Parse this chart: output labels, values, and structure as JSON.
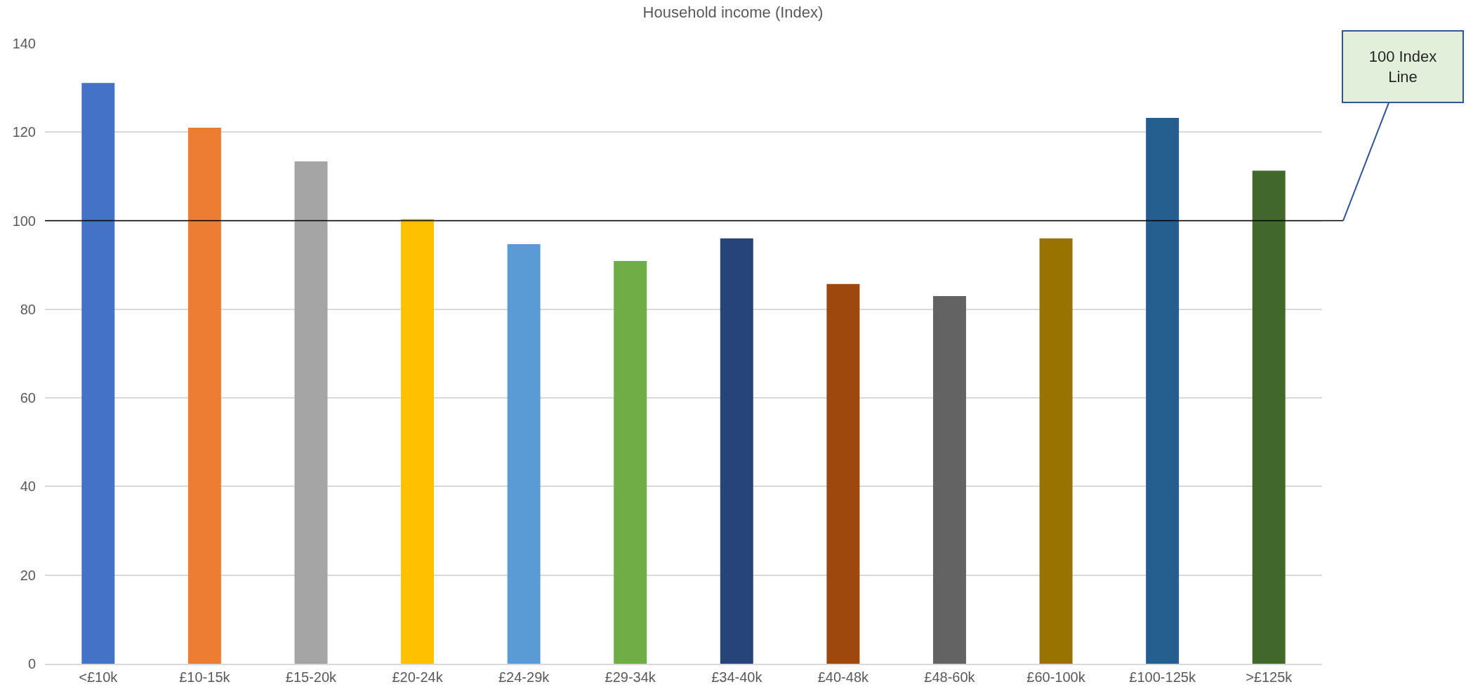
{
  "chart_data": {
    "type": "bar",
    "title": "Household income (Index)",
    "categories": [
      "<£10k",
      "£10-15k",
      "£15-20k",
      "£20-24k",
      "£24-29k",
      "£29-34k",
      "£34-40k",
      "£40-48k",
      "£48-60k",
      "£60-100k",
      "£100-125k",
      ">£125k"
    ],
    "values": [
      131.1,
      121.0,
      113.4,
      100.4,
      94.7,
      90.9,
      96.0,
      85.7,
      83.0,
      96.0,
      123.2,
      111.3
    ],
    "colors": [
      "#4472c4",
      "#ed7d31",
      "#a5a5a5",
      "#ffc000",
      "#5b9bd5",
      "#70ad47",
      "#264478",
      "#9e480e",
      "#636363",
      "#997300",
      "#255e91",
      "#43682b"
    ],
    "ylim": [
      0,
      140
    ],
    "yticks": [
      0,
      20,
      40,
      60,
      80,
      100,
      120,
      140
    ],
    "grid": "y",
    "ref_lines": [
      {
        "axis": "y",
        "value": 100,
        "label": "100 Index Line",
        "color": "#000000"
      }
    ]
  }
}
